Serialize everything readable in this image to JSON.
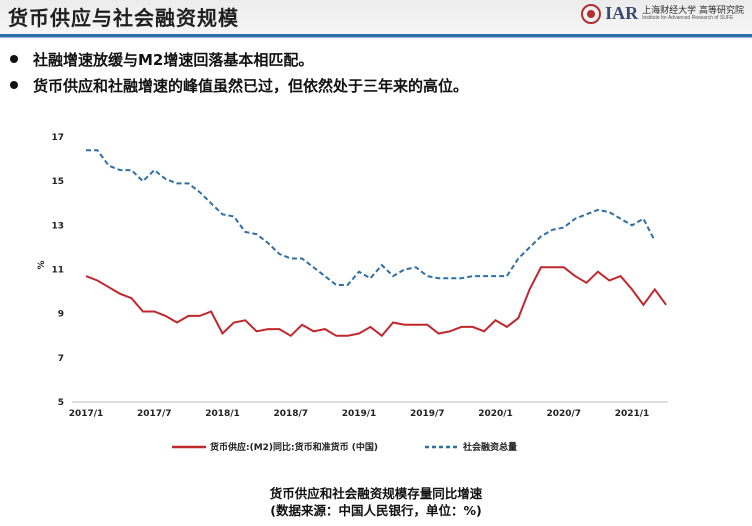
{
  "header": {
    "title": "货币供应与社会融资规模",
    "logo_abbr": "IAR",
    "logo_cn": "上海财经大学 高等研究院",
    "logo_en": "Institute for Advanced Research of SUFE"
  },
  "bullets": [
    "社融增速放缓与M2增速回落基本相匹配。",
    "货币供应和社融增速的峰值虽然已过，但依然处于三年来的高位。"
  ],
  "caption": {
    "line1": "货币供应和社会融资规模存量同比增速",
    "line2": "(数据来源：中国人民银行，单位：%)"
  },
  "colors": {
    "m2": "#c0272d",
    "tsf": "#2f6fa8",
    "header_bar": "#2f6fa8"
  },
  "chart_data": {
    "type": "line",
    "ylabel": "%",
    "ylim": [
      5,
      17
    ],
    "yticks": [
      5,
      7,
      9,
      11,
      13,
      15,
      17
    ],
    "x_range": [
      0,
      48
    ],
    "xticks": [
      {
        "i": 0,
        "label": "2017/1"
      },
      {
        "i": 6,
        "label": "2017/7"
      },
      {
        "i": 12,
        "label": "2018/1"
      },
      {
        "i": 18,
        "label": "2018/7"
      },
      {
        "i": 24,
        "label": "2019/1"
      },
      {
        "i": 30,
        "label": "2019/7"
      },
      {
        "i": 36,
        "label": "2020/1"
      },
      {
        "i": 42,
        "label": "2020/7"
      },
      {
        "i": 48,
        "label": "2021/1"
      }
    ],
    "legend_position": "bottom",
    "series": [
      {
        "name": "货币供应:(M2)同比:货币和准货币 (中国)",
        "style": "solid",
        "start_index": 0,
        "values": [
          10.7,
          10.5,
          10.2,
          9.9,
          9.7,
          9.1,
          9.1,
          8.9,
          8.6,
          8.9,
          8.9,
          9.1,
          8.1,
          8.6,
          8.7,
          8.2,
          8.3,
          8.3,
          8.0,
          8.5,
          8.2,
          8.3,
          8.0,
          8.0,
          8.1,
          8.4,
          8.0,
          8.6,
          8.5,
          8.5,
          8.5,
          8.1,
          8.2,
          8.4,
          8.4,
          8.2,
          8.7,
          8.4,
          8.8,
          10.1,
          11.1,
          11.1,
          11.1,
          10.7,
          10.4,
          10.9,
          10.5,
          10.7,
          10.1,
          9.4,
          10.1,
          9.4
        ]
      },
      {
        "name": "社会融资总量",
        "style": "dashed",
        "start_index": 0,
        "values": [
          16.4,
          16.4,
          15.7,
          15.5,
          15.5,
          15.0,
          15.5,
          15.1,
          14.9,
          14.9,
          14.5,
          14.0,
          13.5,
          13.4,
          12.7,
          12.6,
          12.2,
          11.7,
          11.5,
          11.5,
          11.1,
          10.7,
          10.3,
          10.3,
          10.9,
          10.6,
          11.2,
          10.7,
          11.0,
          11.1,
          10.7,
          10.6,
          10.6,
          10.6,
          10.7,
          10.7,
          10.7,
          10.7,
          11.5,
          12.0,
          12.5,
          12.8,
          12.9,
          13.3,
          13.5,
          13.7,
          13.6,
          13.3,
          13.0,
          13.3,
          12.3
        ]
      }
    ]
  }
}
